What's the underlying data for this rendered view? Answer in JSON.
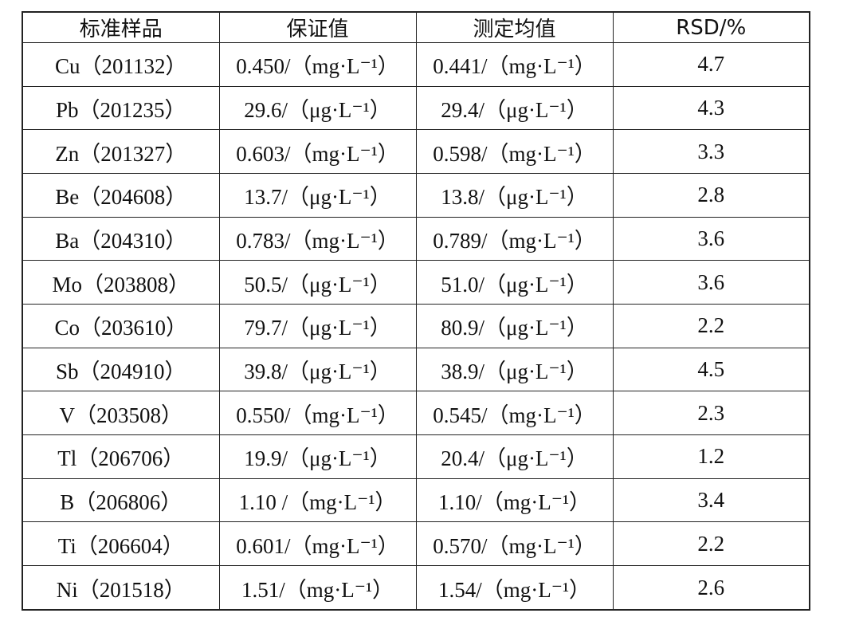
{
  "table": {
    "header": [
      "标准样品",
      "保证值",
      "测定均值",
      "RSD/%"
    ],
    "rows": [
      [
        "Cu（201132）",
        "0.450/（mg·L⁻¹）",
        "0.441/（mg·L⁻¹）",
        "4.7"
      ],
      [
        "Pb（201235）",
        "29.6/（μg·L⁻¹）",
        "29.4/（μg·L⁻¹）",
        "4.3"
      ],
      [
        "Zn（201327）",
        "0.603/（mg·L⁻¹）",
        "0.598/（mg·L⁻¹）",
        "3.3"
      ],
      [
        "Be（204608）",
        "13.7/（μg·L⁻¹）",
        "13.8/（μg·L⁻¹）",
        "2.8"
      ],
      [
        "Ba（204310）",
        "0.783/（mg·L⁻¹）",
        "0.789/（mg·L⁻¹）",
        "3.6"
      ],
      [
        "Mo（203808）",
        "50.5/（μg·L⁻¹）",
        "51.0/（μg·L⁻¹）",
        "3.6"
      ],
      [
        "Co（203610）",
        "79.7/（μg·L⁻¹）",
        "80.9/（μg·L⁻¹）",
        "2.2"
      ],
      [
        "Sb（204910）",
        "39.8/（μg·L⁻¹）",
        "38.9/（μg·L⁻¹）",
        "4.5"
      ],
      [
        "V（203508）",
        "0.550/（mg·L⁻¹）",
        "0.545/（mg·L⁻¹）",
        "2.3"
      ],
      [
        "Tl（206706）",
        "19.9/（μg·L⁻¹）",
        "20.4/（μg·L⁻¹）",
        "1.2"
      ],
      [
        "B（206806）",
        "1.10 /（mg·L⁻¹）",
        "1.10/（mg·L⁻¹）",
        "3.4"
      ],
      [
        "Ti（206604）",
        "0.601/（mg·L⁻¹）",
        "0.570/（mg·L⁻¹）",
        "2.2"
      ],
      [
        "Ni（201518）",
        "1.51/（mg·L⁻¹）",
        "1.54/（mg·L⁻¹）",
        "2.6"
      ]
    ]
  }
}
